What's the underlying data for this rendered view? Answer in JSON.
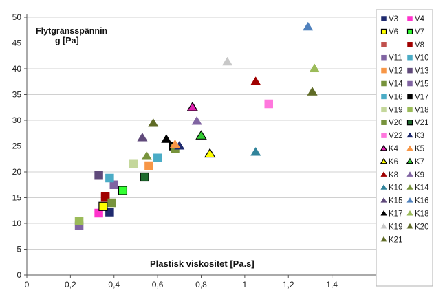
{
  "chart_data": {
    "type": "scatter",
    "ylabel_line1": "Flytgränsspännin",
    "ylabel_line2": "g  [Pa]",
    "xlabel": "Plastisk viskositet [Pa.s]",
    "xlim": [
      0,
      1.6
    ],
    "ylim": [
      0,
      50
    ],
    "x_ticks": [
      "0",
      "0,2",
      "0,4",
      "0,6",
      "0,8",
      "1",
      "1,2",
      "1,4"
    ],
    "x_tick_values": [
      0,
      0.2,
      0.4,
      0.6,
      0.8,
      1.0,
      1.2,
      1.4
    ],
    "y_ticks": [
      "0",
      "5",
      "10",
      "15",
      "20",
      "25",
      "30",
      "35",
      "40",
      "45",
      "50"
    ],
    "y_tick_values": [
      0,
      5,
      10,
      15,
      20,
      25,
      30,
      35,
      40,
      45,
      50
    ],
    "grid": "horizontal",
    "legend_position": "right",
    "series": [
      {
        "name": "V3",
        "marker": "square",
        "color": "#1f2a6e",
        "x": 0.38,
        "y": 12.2
      },
      {
        "name": "V4",
        "marker": "square",
        "color": "#ff33cc",
        "x": 0.33,
        "y": 12.0
      },
      {
        "name": "V6",
        "marker": "square",
        "color": "#ffff00",
        "stroke": "#000000",
        "x": 0.35,
        "y": 13.3
      },
      {
        "name": "V7",
        "marker": "square",
        "color": "#33ff33",
        "stroke": "#000000",
        "x": 0.44,
        "y": 16.4
      },
      {
        "name": "",
        "marker": "square",
        "color": "#c0504d",
        "x": 0.36,
        "y": 15.0
      },
      {
        "name": "V8",
        "marker": "square",
        "color": "#a00000",
        "x": 0.36,
        "y": 15.2
      },
      {
        "name": "V11",
        "marker": "square",
        "color": "#8064a2",
        "x": 0.4,
        "y": 17.5
      },
      {
        "name": "V10",
        "marker": "square",
        "color": "#4bacc6",
        "x": 0.38,
        "y": 18.8
      },
      {
        "name": "V12",
        "marker": "square",
        "color": "#f79646",
        "x": 0.56,
        "y": 21.2
      },
      {
        "name": "V13",
        "marker": "square",
        "color": "#604a7b",
        "x": 0.33,
        "y": 19.3
      },
      {
        "name": "V14",
        "marker": "square",
        "color": "#77933c",
        "x": 0.39,
        "y": 14.0
      },
      {
        "name": "V15",
        "marker": "square",
        "color": "#8064a2",
        "x": 0.24,
        "y": 9.5
      },
      {
        "name": "V16",
        "marker": "square",
        "color": "#4bacc6",
        "x": 0.6,
        "y": 22.7
      },
      {
        "name": "V17",
        "marker": "square",
        "color": "#000000",
        "x": 0.67,
        "y": 25.0
      },
      {
        "name": "V19",
        "marker": "square",
        "color": "#c4d79b",
        "x": 0.49,
        "y": 21.5
      },
      {
        "name": "V18",
        "marker": "square",
        "color": "#9bbb59",
        "x": 0.24,
        "y": 10.5
      },
      {
        "name": "V20",
        "marker": "square",
        "color": "#77933c",
        "x": 0.68,
        "y": 24.5
      },
      {
        "name": "V21",
        "marker": "square",
        "color": "#1e6b2e",
        "stroke": "#000000",
        "x": 0.54,
        "y": 19.0
      },
      {
        "name": "V22",
        "marker": "square",
        "color": "#ff77dd",
        "x": 1.11,
        "y": 33.2
      },
      {
        "name": "K3",
        "marker": "triangle",
        "color": "#1f2a6e",
        "x": 0.7,
        "y": 25.0
      },
      {
        "name": "K4",
        "marker": "triangle",
        "color": "#e020b0",
        "stroke": "#000000",
        "x": 0.76,
        "y": 32.5
      },
      {
        "name": "K5",
        "marker": "triangle",
        "color": "#f79646",
        "x": 0.68,
        "y": 25.3
      },
      {
        "name": "K6",
        "marker": "triangle",
        "color": "#ffff00",
        "stroke": "#000000",
        "x": 0.84,
        "y": 23.5
      },
      {
        "name": "K7",
        "marker": "triangle",
        "color": "#33cc33",
        "stroke": "#000000",
        "x": 0.8,
        "y": 27.0
      },
      {
        "name": "K8",
        "marker": "triangle",
        "color": "#a00000",
        "x": 1.05,
        "y": 37.5
      },
      {
        "name": "K9",
        "marker": "triangle",
        "color": "#8064a2",
        "x": 0.78,
        "y": 29.8
      },
      {
        "name": "K10",
        "marker": "triangle",
        "color": "#31849b",
        "x": 1.05,
        "y": 23.8
      },
      {
        "name": "K14",
        "marker": "triangle",
        "color": "#77933c",
        "x": 0.55,
        "y": 23.0
      },
      {
        "name": "K15",
        "marker": "triangle",
        "color": "#604a7b",
        "x": 0.53,
        "y": 26.6
      },
      {
        "name": "K16",
        "marker": "triangle",
        "color": "#4f81bd",
        "x": 1.29,
        "y": 48.1
      },
      {
        "name": "K17",
        "marker": "triangle",
        "color": "#000000",
        "x": 0.64,
        "y": 26.3
      },
      {
        "name": "K18",
        "marker": "triangle",
        "color": "#9bbb59",
        "x": 1.32,
        "y": 40.0
      },
      {
        "name": "K19",
        "marker": "triangle",
        "color": "#c8c8c8",
        "x": 0.92,
        "y": 41.3
      },
      {
        "name": "K20",
        "marker": "triangle",
        "color": "#5f6b26",
        "x": 1.31,
        "y": 35.5
      },
      {
        "name": "K21",
        "marker": "triangle",
        "color": "#5f6b26",
        "x": 0.58,
        "y": 29.4
      }
    ]
  }
}
